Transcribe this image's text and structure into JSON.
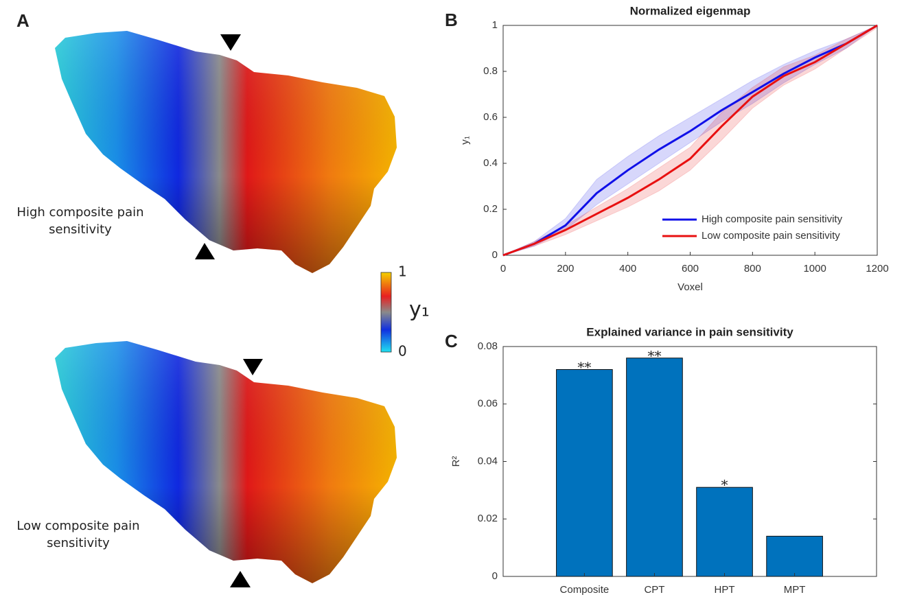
{
  "panel_a": {
    "panel_label": "A",
    "top_label": [
      "High composite pain",
      "sensitivity"
    ],
    "bottom_label": [
      "Low composite pain",
      "sensitivity"
    ],
    "colorbar": {
      "label": "y₁",
      "ticks": [
        1,
        0
      ]
    }
  },
  "chart_data": [
    {
      "type": "line",
      "panel_label": "B",
      "title": "Normalized eigenmap",
      "xlabel": "Voxel",
      "ylabel": "y₁",
      "x": [
        0,
        100,
        200,
        300,
        400,
        500,
        600,
        700,
        800,
        900,
        1000,
        1100,
        1200
      ],
      "series": [
        {
          "name": "High composite pain sensitivity",
          "color": "#1010e8",
          "values": [
            0,
            0.05,
            0.13,
            0.27,
            0.37,
            0.46,
            0.54,
            0.63,
            0.71,
            0.79,
            0.86,
            0.92,
            1.0
          ],
          "band_lower": [
            0,
            0.04,
            0.11,
            0.22,
            0.31,
            0.4,
            0.49,
            0.58,
            0.66,
            0.75,
            0.83,
            0.9,
            1.0
          ],
          "band_upper": [
            0,
            0.06,
            0.16,
            0.33,
            0.43,
            0.52,
            0.6,
            0.68,
            0.76,
            0.83,
            0.89,
            0.94,
            1.0
          ]
        },
        {
          "name": "Low composite pain sensitivity",
          "color": "#e81010",
          "values": [
            0,
            0.05,
            0.11,
            0.18,
            0.25,
            0.33,
            0.42,
            0.56,
            0.69,
            0.78,
            0.84,
            0.92,
            1.0
          ],
          "band_lower": [
            0,
            0.04,
            0.09,
            0.15,
            0.21,
            0.28,
            0.37,
            0.5,
            0.64,
            0.74,
            0.81,
            0.9,
            0.99
          ],
          "band_upper": [
            0,
            0.06,
            0.13,
            0.21,
            0.29,
            0.38,
            0.47,
            0.62,
            0.73,
            0.82,
            0.87,
            0.94,
            1.0
          ]
        }
      ],
      "xlim": [
        0,
        1200
      ],
      "xticks": [
        0,
        200,
        400,
        600,
        800,
        1000,
        1200
      ],
      "ylim": [
        0,
        1
      ],
      "yticks": [
        0,
        0.2,
        0.4,
        0.6,
        0.8,
        1
      ],
      "legend": "lower-right"
    },
    {
      "type": "bar",
      "panel_label": "C",
      "title": "Explained variance in pain sensitivity",
      "ylabel": "R²",
      "categories": [
        "Composite",
        "CPT",
        "HPT",
        "MPT"
      ],
      "values": [
        0.072,
        0.076,
        0.031,
        0.014
      ],
      "annotations": [
        "**",
        "**",
        "*",
        null
      ],
      "color": "#0072bd",
      "ylim": [
        0,
        0.08
      ],
      "yticks": [
        0,
        0.02,
        0.04,
        0.06,
        0.08
      ]
    }
  ]
}
